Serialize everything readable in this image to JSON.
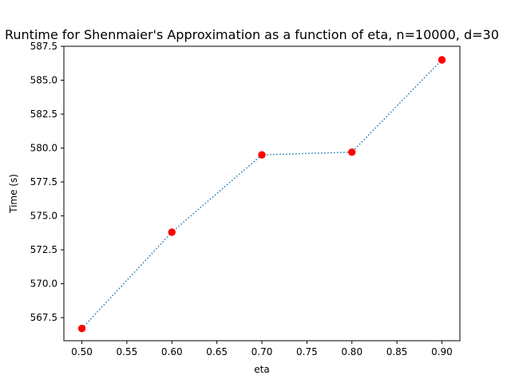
{
  "chart_data": {
    "type": "line",
    "title": "Runtime for Shenmaier's Approximation as a function of eta, n=10000, d=30",
    "xlabel": "eta",
    "ylabel": "Time (s)",
    "x": [
      0.5,
      0.6,
      0.7,
      0.8,
      0.9
    ],
    "series": [
      {
        "name": "",
        "values": [
          566.7,
          573.8,
          579.5,
          579.7,
          586.5
        ],
        "line_style": "dotted",
        "line_color": "#1f77b4",
        "marker": "circle",
        "marker_color": "#ff0000"
      }
    ],
    "xlim": [
      0.48,
      0.92
    ],
    "ylim": [
      565.8,
      587.5
    ],
    "x_ticks": [
      0.5,
      0.55,
      0.6,
      0.65,
      0.7,
      0.75,
      0.8,
      0.85,
      0.9
    ],
    "x_tick_labels": [
      "0.50",
      "0.55",
      "0.60",
      "0.65",
      "0.70",
      "0.75",
      "0.80",
      "0.85",
      "0.90"
    ],
    "y_ticks": [
      567.5,
      570.0,
      572.5,
      575.0,
      577.5,
      580.0,
      582.5,
      585.0,
      587.5
    ],
    "y_tick_labels": [
      "567.5",
      "570.0",
      "572.5",
      "575.0",
      "577.5",
      "580.0",
      "582.5",
      "585.0",
      "587.5"
    ],
    "grid": false,
    "legend": "none"
  }
}
